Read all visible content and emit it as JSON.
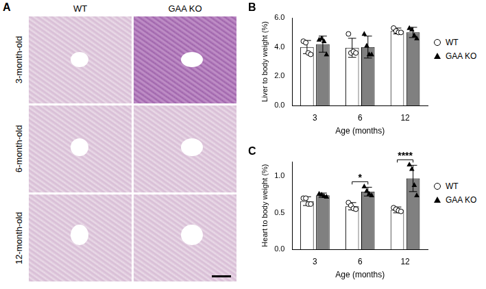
{
  "panel_a": {
    "panel_label": "A",
    "columns": [
      "WT",
      "GAA KO"
    ],
    "rows": [
      "3-month-old",
      "6-month-old",
      "12-month-old"
    ]
  },
  "chart_data": [
    {
      "panel_label": "B",
      "type": "bar",
      "x_label": "Age (months)",
      "y_label": "Liver to body weight (%)",
      "categories": [
        "3",
        "6",
        "12"
      ],
      "series": [
        {
          "name": "WT",
          "color": "#ffffff",
          "marker": "circle",
          "values": [
            4.0,
            3.95,
            5.1
          ],
          "error": [
            0.45,
            0.65,
            0.2
          ],
          "points": [
            [
              4.4,
              4.3,
              3.6,
              3.5
            ],
            [
              4.9,
              3.6,
              3.7,
              3.6
            ],
            [
              5.3,
              5.1,
              5.0,
              5.0
            ]
          ]
        },
        {
          "name": "GAA KO",
          "color": "#808080",
          "marker": "triangle",
          "values": [
            4.2,
            4.0,
            5.0
          ],
          "error": [
            0.55,
            0.75,
            0.35
          ],
          "points": [
            [
              4.5,
              4.6,
              4.4,
              3.5
            ],
            [
              4.9,
              4.1,
              3.5,
              3.5
            ],
            [
              5.3,
              5.2,
              4.8,
              4.6
            ]
          ]
        }
      ],
      "ylim": [
        0,
        6
      ],
      "yticks": [
        {
          "value": 0,
          "label": "0.0"
        },
        {
          "value": 2,
          "label": "2.0"
        },
        {
          "value": 4,
          "label": "4.0"
        },
        {
          "value": 6,
          "label": "6.0"
        }
      ],
      "grid": false,
      "legend": "right"
    },
    {
      "panel_label": "C",
      "type": "bar",
      "x_label": "Age (months)",
      "y_label": "Heart to body weight (%)",
      "categories": [
        "3",
        "6",
        "12"
      ],
      "series": [
        {
          "name": "WT",
          "color": "#ffffff",
          "marker": "circle",
          "values": [
            0.66,
            0.59,
            0.54
          ],
          "error": [
            0.06,
            0.05,
            0.04
          ],
          "points": [
            [
              0.7,
              0.7,
              0.62,
              0.62
            ],
            [
              0.64,
              0.6,
              0.56,
              0.55
            ],
            [
              0.57,
              0.55,
              0.53,
              0.52
            ]
          ]
        },
        {
          "name": "GAA KO",
          "color": "#808080",
          "marker": "triangle",
          "values": [
            0.74,
            0.79,
            0.97
          ],
          "error": [
            0.03,
            0.06,
            0.18
          ],
          "points": [
            [
              0.76,
              0.75,
              0.73,
              0.72
            ],
            [
              0.86,
              0.8,
              0.76,
              0.74
            ],
            [
              1.16,
              1.1,
              0.88,
              0.74
            ]
          ]
        }
      ],
      "ylim": [
        0,
        1.2
      ],
      "yticks": [
        {
          "value": 0,
          "label": "0.0"
        },
        {
          "value": 0.5,
          "label": "0.5"
        },
        {
          "value": 1.0,
          "label": "1.0"
        }
      ],
      "annotations": [
        {
          "category": "6",
          "label": "*"
        },
        {
          "category": "12",
          "label": "****"
        }
      ],
      "grid": false,
      "legend": "right"
    }
  ]
}
